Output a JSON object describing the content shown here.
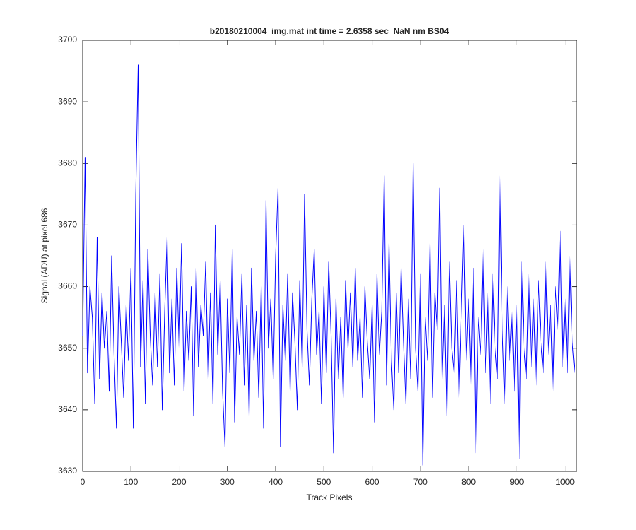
{
  "chart_data": {
    "type": "line",
    "title": "b20180210004_img.mat int time = 2.6358 sec  NaN nm BS04",
    "xlabel": "Track Pixels",
    "ylabel": "Signal (ADU) at pixel 686",
    "xlim": [
      0,
      1024
    ],
    "ylim": [
      3630,
      3700
    ],
    "xticks": [
      0,
      100,
      200,
      300,
      400,
      500,
      600,
      700,
      800,
      900,
      1000
    ],
    "yticks": [
      3630,
      3640,
      3650,
      3660,
      3670,
      3680,
      3690,
      3700
    ],
    "grid": false,
    "series": [
      {
        "name": "signal",
        "color": "#0000ff",
        "x": [
          0,
          5,
          10,
          15,
          20,
          25,
          30,
          35,
          40,
          45,
          50,
          55,
          60,
          65,
          70,
          75,
          80,
          85,
          90,
          95,
          100,
          105,
          110,
          115,
          120,
          125,
          130,
          135,
          140,
          145,
          150,
          155,
          160,
          165,
          170,
          175,
          180,
          185,
          190,
          195,
          200,
          205,
          210,
          215,
          220,
          225,
          230,
          235,
          240,
          245,
          250,
          255,
          260,
          265,
          270,
          275,
          280,
          285,
          290,
          295,
          300,
          305,
          310,
          315,
          320,
          325,
          330,
          335,
          340,
          345,
          350,
          355,
          360,
          365,
          370,
          375,
          380,
          385,
          390,
          395,
          400,
          405,
          410,
          415,
          420,
          425,
          430,
          435,
          440,
          445,
          450,
          455,
          460,
          465,
          470,
          475,
          480,
          485,
          490,
          495,
          500,
          505,
          510,
          515,
          520,
          525,
          530,
          535,
          540,
          545,
          550,
          555,
          560,
          565,
          570,
          575,
          580,
          585,
          590,
          595,
          600,
          605,
          610,
          615,
          620,
          625,
          630,
          635,
          640,
          645,
          650,
          655,
          660,
          665,
          670,
          675,
          680,
          685,
          690,
          695,
          700,
          705,
          710,
          715,
          720,
          725,
          730,
          735,
          740,
          745,
          750,
          755,
          760,
          765,
          770,
          775,
          780,
          785,
          790,
          795,
          800,
          805,
          810,
          815,
          820,
          825,
          830,
          835,
          840,
          845,
          850,
          855,
          860,
          865,
          870,
          875,
          880,
          885,
          890,
          895,
          900,
          905,
          910,
          915,
          920,
          925,
          930,
          935,
          940,
          945,
          950,
          955,
          960,
          965,
          970,
          975,
          980,
          985,
          990,
          995,
          1000,
          1005,
          1010,
          1015,
          1020
        ],
        "values": [
          3652,
          3681,
          3646,
          3660,
          3655,
          3641,
          3668,
          3645,
          3659,
          3650,
          3656,
          3643,
          3665,
          3649,
          3637,
          3660,
          3651,
          3642,
          3657,
          3648,
          3663,
          3637,
          3675,
          3696,
          3647,
          3661,
          3641,
          3666,
          3652,
          3644,
          3659,
          3647,
          3662,
          3640,
          3656,
          3668,
          3646,
          3658,
          3644,
          3663,
          3650,
          3667,
          3643,
          3656,
          3648,
          3660,
          3639,
          3663,
          3647,
          3657,
          3652,
          3664,
          3645,
          3659,
          3641,
          3670,
          3649,
          3661,
          3643,
          3634,
          3658,
          3646,
          3666,
          3638,
          3655,
          3649,
          3662,
          3644,
          3657,
          3639,
          3663,
          3648,
          3656,
          3642,
          3660,
          3637,
          3674,
          3650,
          3658,
          3645,
          3665,
          3676,
          3634,
          3657,
          3648,
          3662,
          3643,
          3659,
          3651,
          3640,
          3661,
          3647,
          3675,
          3653,
          3644,
          3658,
          3666,
          3649,
          3656,
          3641,
          3660,
          3646,
          3664,
          3652,
          3633,
          3658,
          3645,
          3655,
          3642,
          3661,
          3650,
          3659,
          3647,
          3663,
          3648,
          3655,
          3642,
          3660,
          3651,
          3645,
          3657,
          3638,
          3662,
          3649,
          3656,
          3678,
          3644,
          3667,
          3648,
          3640,
          3659,
          3646,
          3663,
          3651,
          3641,
          3658,
          3645,
          3680,
          3650,
          3643,
          3662,
          3631,
          3655,
          3648,
          3667,
          3642,
          3659,
          3653,
          3676,
          3645,
          3657,
          3639,
          3664,
          3650,
          3646,
          3661,
          3642,
          3656,
          3670,
          3648,
          3658,
          3644,
          3663,
          3633,
          3655,
          3649,
          3666,
          3646,
          3659,
          3641,
          3662,
          3650,
          3645,
          3678,
          3653,
          3641,
          3660,
          3648,
          3656,
          3643,
          3657,
          3632,
          3664,
          3650,
          3645,
          3662,
          3647,
          3658,
          3644,
          3661,
          3651,
          3646,
          3664,
          3649,
          3657,
          3643,
          3660,
          3653,
          3669,
          3647,
          3658,
          3646,
          3665,
          3651,
          3646
        ]
      }
    ]
  }
}
